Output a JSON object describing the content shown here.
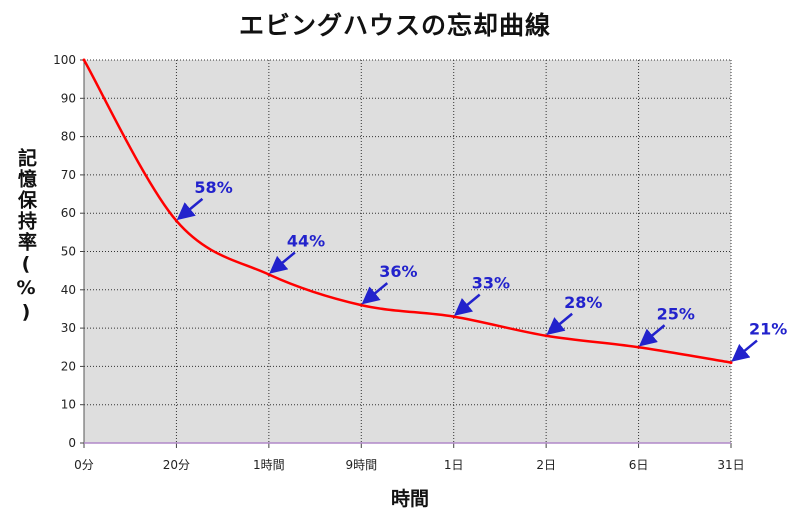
{
  "chart_data": {
    "type": "line",
    "title": "エビングハウスの忘却曲線",
    "xlabel": "時間",
    "ylabel": "記憶保持率(%)",
    "categories": [
      "0分",
      "20分",
      "1時間",
      "9時間",
      "1日",
      "2日",
      "6日",
      "31日"
    ],
    "y_ticks": [
      0,
      10,
      20,
      30,
      40,
      50,
      60,
      70,
      80,
      90,
      100
    ],
    "ylim": [
      0,
      100
    ],
    "grid": true,
    "series": [
      {
        "color": "#ff0000",
        "values": [
          100,
          58,
          44,
          36,
          33,
          28,
          25,
          21
        ]
      }
    ],
    "annotations": [
      "58%",
      "44%",
      "36%",
      "33%",
      "28%",
      "25%",
      "21%"
    ],
    "colors": {
      "plot_background": "#dedede",
      "line": "#ff0000",
      "annotation": "#2222cc"
    }
  }
}
